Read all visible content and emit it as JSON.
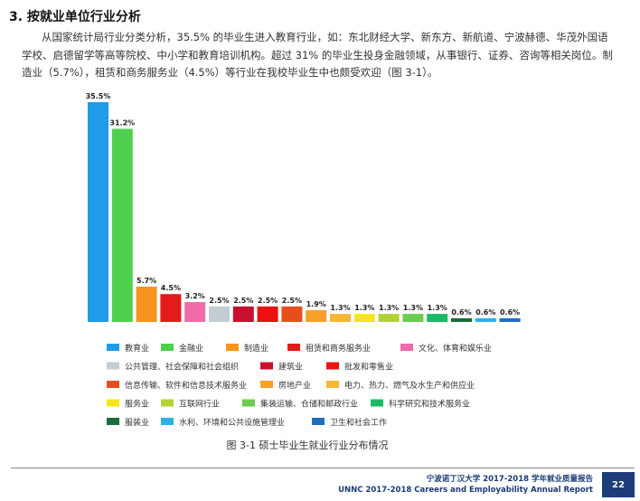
{
  "section_title": "3. 按就业单位行业分析",
  "paragraph": "从国家统计局行业分类分析，35.5% 的毕业生进入教育行业，如：东北财经大学、新东方、新航道、宁波赫德、华茂外国语学校、启德留学等高等院校、中小学和教育培训机构。超过 31% 的毕业生投身金融领域，从事银行、证券、咨询等相关岗位。制造业（5.7%），租赁和商务服务业（4.5%）等行业在我校毕业生中也颇受欢迎（图 3-1）。",
  "caption": "图 3-1 硕士毕业生就业行业分布情况",
  "footer": {
    "cn": "宁波诺丁汉大学 2017-2018 学年就业质量报告",
    "en": "UNNC 2017-2018 Careers and Employability Annual Report",
    "page": "22"
  },
  "chart_data": {
    "type": "bar",
    "ylim": [
      0,
      35.5
    ],
    "categories": [
      "教育业",
      "金融业",
      "制造业",
      "租赁和商务服务业",
      "文化、体育和娱乐业",
      "公共管理、社会保障和社会组织",
      "建筑业",
      "批发和零售业",
      "信息传输、软件和信息技术服务业",
      "房地产业",
      "电力、热力、燃气及水生产和供应业",
      "服务业",
      "互联网行业",
      "集装运输、仓储和邮政行业",
      "科学研究和技术服务业",
      "服装业",
      "水利、环境和公共设施管理业",
      "卫生和社会工作"
    ],
    "values": [
      35.5,
      31.2,
      5.7,
      4.5,
      3.2,
      2.5,
      2.5,
      2.5,
      2.5,
      1.9,
      1.3,
      1.3,
      1.3,
      1.3,
      1.3,
      0.6,
      0.6,
      0.6
    ],
    "value_labels": [
      "35.5%",
      "31.2%",
      "5.7%",
      "4.5%",
      "3.2%",
      "2.5%",
      "2.5%",
      "2.5%",
      "2.5%",
      "1.9%",
      "1.3%",
      "1.3%",
      "1.3%",
      "1.3%",
      "1.3%",
      "0.6%",
      "0.6%",
      "0.6%"
    ],
    "colors": [
      "#1f9be8",
      "#4fcf4f",
      "#f7941d",
      "#e31b1b",
      "#f06ba8",
      "#c3cdd3",
      "#c8102e",
      "#ee1111",
      "#e84e1b",
      "#f7a12b",
      "#f7b733",
      "#f5e51e",
      "#b0d235",
      "#6dcb53",
      "#1dba66",
      "#1a6b3a",
      "#2cb0e6",
      "#1f6fc1"
    ],
    "legend": [
      "教育业",
      "金融业",
      "制造业",
      "租赁和商务服务业",
      "文化、体育和娱乐业",
      "公共管理、社会保障和社会组织",
      "建筑业",
      "批发和零售业",
      "信息传输、软件和信息技术服务业",
      "房地产业",
      "电力、热力、燃气及水生产和供应业",
      "服务业",
      "互联网行业",
      "集装运输、仓储和邮政行业",
      "科学研究和技术服务业",
      "服装业",
      "水利、环境和公共设施管理业",
      "卫生和社会工作"
    ],
    "grid": false
  }
}
